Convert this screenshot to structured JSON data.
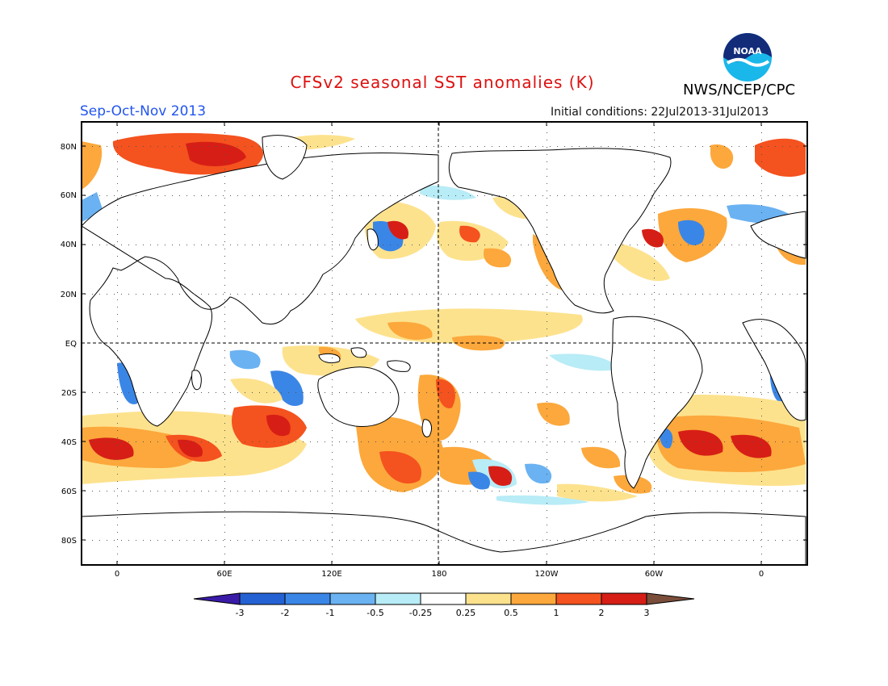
{
  "header": {
    "title": "CFSv2 seasonal SST anomalies (K)",
    "agency": "NWS/NCEP/CPC",
    "season": "Sep-Oct-Nov 2013",
    "initial_conditions": "Initial conditions: 22Jul2013-31Jul2013",
    "logo_text": "NOAA"
  },
  "map": {
    "lat_labels": [
      "80N",
      "60N",
      "40N",
      "20N",
      "EQ",
      "20S",
      "40S",
      "60S",
      "80S"
    ],
    "lon_labels": [
      "0",
      "60E",
      "120E",
      "180",
      "120W",
      "60W",
      "0"
    ]
  },
  "colorbar": {
    "labels": [
      "-3",
      "-2",
      "-1",
      "-0.5",
      "-0.25",
      "0.25",
      "0.5",
      "1",
      "2",
      "3"
    ],
    "colors": [
      "#3a1ba8",
      "#2462d4",
      "#3a86e6",
      "#6ab2f2",
      "#b8ecf6",
      "#ffffff",
      "#fde28e",
      "#fca83c",
      "#f4521e",
      "#d61e16",
      "#a3070c",
      "#7a4e3a"
    ]
  }
}
